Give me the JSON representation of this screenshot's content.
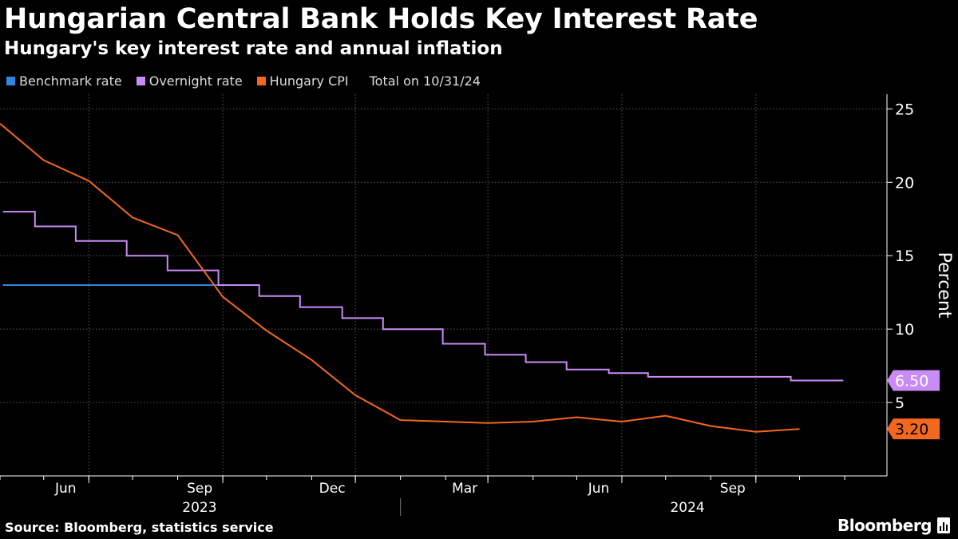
{
  "header": {
    "title": "Hungarian Central Bank Holds Key Interest Rate",
    "subtitle": "Hungary's key interest rate and annual inflation"
  },
  "legend": {
    "note": "Total on 10/31/24"
  },
  "footer": {
    "source": "Source: Bloomberg, statistics service",
    "brand": "Bloomberg",
    "brand_icon": "bloomberg-terminal-icon"
  },
  "chart_data": {
    "type": "line",
    "title": "Hungarian Central Bank Holds Key Interest Rate",
    "subtitle": "Hungary's key interest rate and annual inflation",
    "ylabel": "Percent",
    "xlabel": "",
    "ylim": [
      0,
      26
    ],
    "yticks": [
      5,
      10,
      15,
      20,
      25
    ],
    "xlim": [
      "2023-04-01",
      "2024-11-30"
    ],
    "x_ticks": [
      {
        "date": "2023-06-01",
        "label": "Jun"
      },
      {
        "date": "2023-09-01",
        "label": "Sep"
      },
      {
        "date": "2023-12-01",
        "label": "Dec"
      },
      {
        "date": "2024-03-01",
        "label": "Mar"
      },
      {
        "date": "2024-06-01",
        "label": "Jun"
      },
      {
        "date": "2024-09-01",
        "label": "Sep"
      }
    ],
    "year_labels": [
      {
        "label": "2023",
        "center": "2023-08-16"
      },
      {
        "label": "2024",
        "center": "2024-07-16"
      }
    ],
    "year_divider": "2024-01-01",
    "grid": true,
    "legend_position": "top-left",
    "series": [
      {
        "name": "Benchmark rate",
        "color": "#2e86de",
        "step": true,
        "points": [
          [
            "2023-04-03",
            13
          ],
          [
            "2023-09-25",
            13
          ]
        ]
      },
      {
        "name": "Overnight rate",
        "color": "#c98bf5",
        "step": true,
        "points": [
          [
            "2023-04-03",
            18
          ],
          [
            "2023-04-25",
            17
          ],
          [
            "2023-05-23",
            16
          ],
          [
            "2023-06-27",
            15
          ],
          [
            "2023-07-25",
            14
          ],
          [
            "2023-08-29",
            13
          ],
          [
            "2023-09-26",
            12.25
          ],
          [
            "2023-10-24",
            11.5
          ],
          [
            "2023-11-22",
            10.75
          ],
          [
            "2023-12-20",
            10
          ],
          [
            "2024-01-30",
            9
          ],
          [
            "2024-02-28",
            8.25
          ],
          [
            "2024-03-27",
            7.75
          ],
          [
            "2024-04-24",
            7.25
          ],
          [
            "2024-05-23",
            7
          ],
          [
            "2024-06-19",
            6.75
          ],
          [
            "2024-09-25",
            6.5
          ],
          [
            "2024-10-31",
            6.5
          ]
        ],
        "last_value_label": "6.50"
      },
      {
        "name": "Hungary CPI",
        "color": "#f4671f",
        "step": false,
        "points": [
          [
            "2023-04-01",
            24.0
          ],
          [
            "2023-05-01",
            21.5
          ],
          [
            "2023-06-01",
            20.1
          ],
          [
            "2023-07-01",
            17.6
          ],
          [
            "2023-08-01",
            16.4
          ],
          [
            "2023-09-01",
            12.2
          ],
          [
            "2023-10-01",
            9.9
          ],
          [
            "2023-11-01",
            7.9
          ],
          [
            "2023-12-01",
            5.5
          ],
          [
            "2024-01-01",
            3.8
          ],
          [
            "2024-02-01",
            3.7
          ],
          [
            "2024-03-01",
            3.6
          ],
          [
            "2024-04-01",
            3.7
          ],
          [
            "2024-05-01",
            4.0
          ],
          [
            "2024-06-01",
            3.7
          ],
          [
            "2024-07-01",
            4.1
          ],
          [
            "2024-08-01",
            3.4
          ],
          [
            "2024-09-01",
            3.0
          ],
          [
            "2024-10-01",
            3.2
          ]
        ],
        "last_value_label": "3.20"
      }
    ]
  }
}
